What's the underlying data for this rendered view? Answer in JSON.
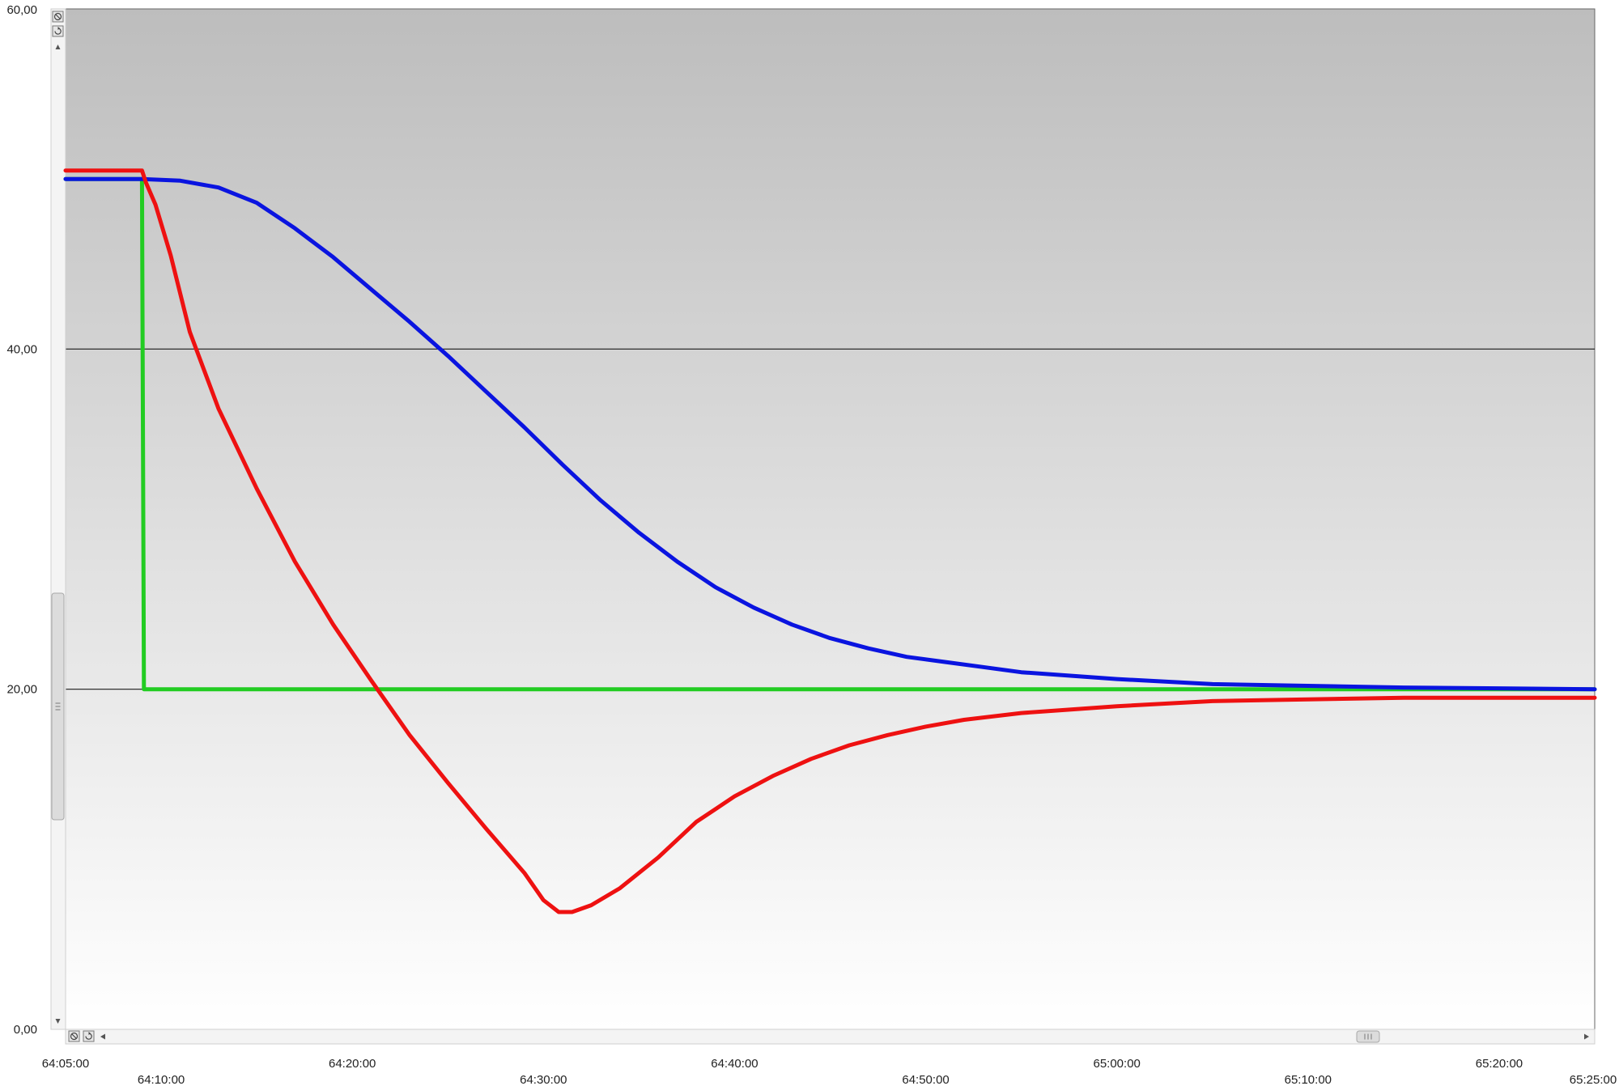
{
  "chart_data": {
    "type": "line",
    "title": "",
    "xlabel": "",
    "ylabel": "",
    "ylim": [
      0,
      60
    ],
    "grid": "horizontal",
    "x_tick_labels": [
      "64:05:00",
      "64:10:00",
      "64:20:00",
      "64:30:00",
      "64:40:00",
      "64:50:00",
      "65:00:00",
      "65:10:00",
      "65:20:00",
      "65:25:00"
    ],
    "y_tick_labels": [
      "0,00",
      "20,00",
      "40,00",
      "60,00"
    ],
    "x_ticks_min": [
      0,
      5,
      15,
      25,
      35,
      45,
      55,
      65,
      75,
      80
    ],
    "y_ticks": [
      0,
      20,
      40,
      60
    ],
    "xlim_min": [
      0,
      80
    ],
    "x_unit": "min after 64:05:00",
    "series": [
      {
        "color": "#22cc22",
        "x": [
          0,
          4,
          4.1,
          80
        ],
        "y": [
          50,
          50,
          20,
          20
        ]
      },
      {
        "color": "#0a14e0",
        "x": [
          0,
          4,
          6,
          8,
          10,
          12,
          14,
          16,
          18,
          20,
          22,
          24,
          26,
          28,
          30,
          32,
          34,
          36,
          38,
          40,
          42,
          44,
          46,
          48,
          50,
          55,
          60,
          65,
          70,
          75,
          80
        ],
        "y": [
          50,
          50,
          49.9,
          49.5,
          48.6,
          47.1,
          45.4,
          43.5,
          41.6,
          39.6,
          37.5,
          35.4,
          33.2,
          31.1,
          29.2,
          27.5,
          26.0,
          24.8,
          23.8,
          23.0,
          22.4,
          21.9,
          21.6,
          21.3,
          21.0,
          20.6,
          20.3,
          20.2,
          20.1,
          20.05,
          20.0
        ]
      },
      {
        "color": "#ee1111",
        "x": [
          0,
          4,
          4.2,
          4.7,
          5.5,
          6.5,
          8,
          10,
          12,
          14,
          16,
          18,
          20,
          22,
          24,
          25,
          25.8,
          26.5,
          27.5,
          29,
          31,
          33,
          35,
          37,
          39,
          41,
          43,
          45,
          47,
          50,
          55,
          60,
          65,
          70,
          75,
          80
        ],
        "y": [
          50.5,
          50.5,
          49.8,
          48.5,
          45.5,
          41.0,
          36.5,
          31.8,
          27.5,
          23.8,
          20.5,
          17.3,
          14.5,
          11.8,
          9.2,
          7.6,
          6.9,
          6.9,
          7.3,
          8.3,
          10.1,
          12.2,
          13.7,
          14.9,
          15.9,
          16.7,
          17.3,
          17.8,
          18.2,
          18.6,
          19.0,
          19.3,
          19.4,
          19.5,
          19.5,
          19.5
        ]
      }
    ]
  }
}
